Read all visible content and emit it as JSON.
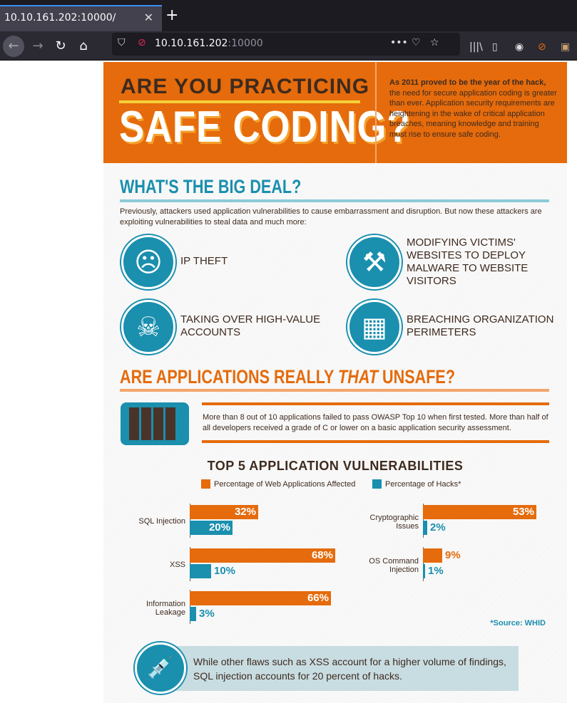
{
  "browser": {
    "tab_title": "10.10.161.202:10000/",
    "url_host": "10.10.161.202",
    "url_port": ":10000"
  },
  "header": {
    "line1": "ARE YOU PRACTICING",
    "line2": "SAFE CODING?",
    "intro_bold": "As 2011 proved to be the year of the hack,",
    "intro_rest": " the need for secure application coding is greater than ever. Application security requirements are heightening in the wake of critical application breaches, meaning knowledge and training must rise to ensure safe coding."
  },
  "big_deal": {
    "title": "WHAT'S THE BIG DEAL?",
    "text": "Previously, attackers used application vulnerabilities to cause embarrassment and disruption. But now these attackers are exploiting vulnerabilities to steal data and much more:",
    "items": [
      {
        "label": "IP THEFT",
        "icon": "head-hand-icon"
      },
      {
        "label": "MODIFYING VICTIMS' WEBSITES TO DEPLOY MALWARE TO WEBSITE VISITORS",
        "icon": "hammer-icon"
      },
      {
        "label": "TAKING OVER HIGH-VALUE ACCOUNTS",
        "icon": "skull-crossbones-icon"
      },
      {
        "label": "BREACHING ORGANIZATION PERIMETERS",
        "icon": "castle-wall-icon"
      }
    ]
  },
  "unsafe": {
    "title_a": "ARE APPLICATIONS REALLY ",
    "title_em": "THAT",
    "title_b": " UNSAFE?",
    "text": "More than 8 out of 10 applications failed to pass OWASP Top 10 when first tested. More than half of all developers received a grade of C or lower on a basic application security assessment."
  },
  "chart_data": {
    "type": "bar",
    "title": "TOP 5 APPLICATION VULNERABILITIES",
    "legend": [
      "Percentage of Web Applications Affected",
      "Percentage of Hacks*"
    ],
    "colors": [
      "#e56b0c",
      "#1a8fae"
    ],
    "categories": [
      "SQL Injection",
      "XSS",
      "Information Leakage",
      "Cryptographic Issues",
      "OS Command Injection"
    ],
    "series": [
      {
        "name": "Percentage of Web Applications Affected",
        "values": [
          32,
          68,
          66,
          53,
          9
        ]
      },
      {
        "name": "Percentage of Hacks*",
        "values": [
          20,
          10,
          3,
          2,
          1
        ]
      }
    ],
    "source": "*Source: WHID"
  },
  "footer": {
    "text": "While other flaws such as XSS account for a higher volume of findings, SQL injection accounts for 20 percent of hacks."
  }
}
